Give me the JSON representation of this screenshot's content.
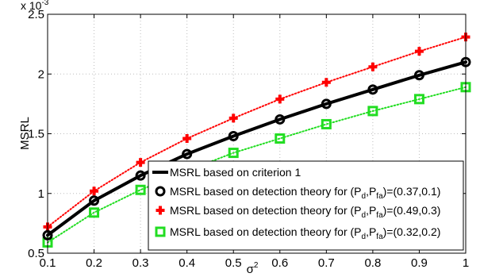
{
  "chart_data": {
    "type": "line",
    "xlabel_base": "σ",
    "xlabel_sup": "2",
    "ylabel": "MSRL",
    "y_exponent_base": "x 10",
    "y_exponent_power": "-3",
    "xlim": [
      0.1,
      1
    ],
    "ylim": [
      0.5,
      2.5
    ],
    "grid": true,
    "grid_style": "dotted",
    "legend_position": "bottom-right",
    "x_ticks": [
      "0.1",
      "0.2",
      "0.3",
      "0.4",
      "0.5",
      "0.6",
      "0.7",
      "0.8",
      "0.9",
      "1"
    ],
    "y_ticks": [
      "0.5",
      "1",
      "1.5",
      "2",
      "2.5"
    ],
    "x": [
      0.1,
      0.2,
      0.3,
      0.4,
      0.5,
      0.6,
      0.7,
      0.8,
      0.9,
      1.0
    ],
    "series": [
      {
        "name": "MSRL based on criterion 1",
        "values": [
          0.65,
          0.94,
          1.15,
          1.33,
          1.48,
          1.62,
          1.75,
          1.87,
          1.99,
          2.1
        ],
        "color": "#000000",
        "line_style": "solid",
        "marker": "none"
      },
      {
        "legend_prefix": "MSRL based on detection theory for (P",
        "legend_sub1": "d",
        "legend_mid": ",P",
        "legend_sub2": "fa",
        "legend_suffix": ")=(0.37,0.1)",
        "values": [
          0.65,
          0.94,
          1.15,
          1.33,
          1.48,
          1.62,
          1.75,
          1.87,
          1.99,
          2.1
        ],
        "color": "#000000",
        "line_style": "none",
        "marker": "circle"
      },
      {
        "legend_prefix": "MSRL based on detection theory for (P",
        "legend_sub1": "d",
        "legend_mid": ",P",
        "legend_sub2": "fa",
        "legend_suffix": ")=(0.49,0.3)",
        "values": [
          0.72,
          1.02,
          1.26,
          1.46,
          1.63,
          1.79,
          1.93,
          2.06,
          2.19,
          2.31
        ],
        "color": "#ff0000",
        "line_style": "dotted",
        "marker": "plus"
      },
      {
        "legend_prefix": "MSRL based on detection theory for (P",
        "legend_sub1": "d",
        "legend_mid": ",P",
        "legend_sub2": "fa",
        "legend_suffix": ")=(0.32,0.2)",
        "values": [
          0.59,
          0.84,
          1.03,
          1.19,
          1.34,
          1.46,
          1.58,
          1.69,
          1.79,
          1.89
        ],
        "color": "#22dd22",
        "line_style": "dotted",
        "marker": "square"
      }
    ]
  }
}
